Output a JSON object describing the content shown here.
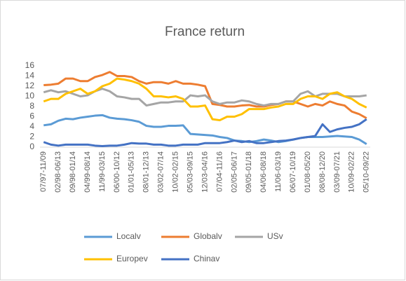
{
  "chart_data": {
    "type": "line",
    "title": "France return",
    "categories": [
      "07/97-11/09",
      null,
      "02/98-06/13",
      null,
      "09/98-01/14",
      null,
      "04/99-08/14",
      null,
      "11/99-03/15",
      null,
      "06/00-10/12",
      null,
      "01/01-05/13",
      null,
      "08/01-12/13",
      null,
      "03/02-07/14",
      null,
      "10/02-02/15",
      null,
      "05/03-09/15",
      null,
      "12/03-04/16",
      null,
      "07/04-11/16",
      null,
      "02/05-06/17",
      null,
      "09/05-01/18",
      null,
      "04/06-08/18",
      null,
      "11/06-03/19",
      null,
      "06/07-10/19",
      null,
      "01/08-05/20",
      null,
      "08/08-12/20",
      null,
      "03/09-07/21",
      null,
      "10/09-02/22",
      null,
      "05/10-09/22"
    ],
    "series": [
      {
        "name": "Localv",
        "color": "#5b9bd5",
        "values": [
          4.3,
          4.5,
          5.2,
          5.6,
          5.5,
          5.8,
          6.0,
          6.2,
          6.3,
          5.8,
          5.6,
          5.5,
          5.3,
          5.0,
          4.2,
          4.0,
          4.0,
          4.2,
          4.2,
          4.3,
          2.6,
          2.5,
          2.4,
          2.3,
          2.0,
          1.8,
          1.3,
          1.2,
          1.0,
          1.2,
          1.5,
          1.3,
          1.0,
          1.2,
          1.5,
          1.8,
          2.0,
          2.0,
          2.0,
          2.1,
          2.2,
          2.1,
          2.0,
          1.5,
          0.6
        ]
      },
      {
        "name": "Globalv",
        "color": "#ed7d31",
        "values": [
          12.2,
          12.3,
          12.5,
          13.5,
          13.5,
          13.0,
          13.0,
          13.8,
          14.2,
          14.8,
          14.0,
          14.0,
          13.8,
          13.0,
          12.5,
          12.8,
          12.8,
          12.5,
          13.0,
          12.5,
          12.5,
          12.3,
          12.0,
          8.5,
          8.3,
          8.0,
          8.0,
          8.2,
          8.3,
          8.0,
          8.0,
          8.3,
          8.5,
          9.0,
          9.0,
          8.5,
          8.0,
          8.5,
          8.2,
          9.0,
          8.5,
          8.2,
          7.0,
          6.5,
          5.7
        ]
      },
      {
        "name": "USv",
        "color": "#a5a5a5",
        "values": [
          10.8,
          11.2,
          10.8,
          11.0,
          10.5,
          10.0,
          10.2,
          11.0,
          11.5,
          11.0,
          10.0,
          9.8,
          9.5,
          9.5,
          8.2,
          8.5,
          8.8,
          8.8,
          9.0,
          9.0,
          10.2,
          10.0,
          10.2,
          9.0,
          8.5,
          8.8,
          8.8,
          9.2,
          9.0,
          8.5,
          8.2,
          8.5,
          8.5,
          9.0,
          9.0,
          10.5,
          11.0,
          10.0,
          10.5,
          10.5,
          10.5,
          10.0,
          10.0,
          10.0,
          10.2
        ]
      },
      {
        "name": "Europev",
        "color": "#ffc000",
        "values": [
          9.0,
          9.5,
          9.5,
          10.5,
          11.0,
          11.5,
          10.5,
          11.0,
          12.0,
          12.5,
          13.5,
          13.3,
          13.0,
          12.5,
          11.5,
          10.0,
          10.0,
          9.8,
          10.0,
          9.5,
          8.0,
          8.0,
          8.2,
          5.5,
          5.3,
          6.0,
          6.0,
          6.5,
          7.5,
          7.5,
          7.5,
          7.8,
          8.0,
          8.5,
          8.5,
          9.5,
          10.0,
          10.0,
          9.5,
          10.5,
          10.8,
          10.0,
          9.5,
          8.5,
          7.8
        ]
      },
      {
        "name": "Chinav",
        "color": "#4472c4",
        "values": [
          1.0,
          0.5,
          0.3,
          0.5,
          0.5,
          0.5,
          0.5,
          0.3,
          0.2,
          0.3,
          0.3,
          0.5,
          0.8,
          0.7,
          0.7,
          0.5,
          0.5,
          0.3,
          0.3,
          0.5,
          0.5,
          0.5,
          0.8,
          0.8,
          0.8,
          1.0,
          1.3,
          1.0,
          1.2,
          0.8,
          0.8,
          1.0,
          1.2,
          1.3,
          1.5,
          1.8,
          2.0,
          2.2,
          4.5,
          3.0,
          3.5,
          3.8,
          4.0,
          4.5,
          5.5
        ]
      }
    ],
    "ylim": [
      0,
      16
    ],
    "yticks": [
      0,
      2,
      4,
      6,
      8,
      10,
      12,
      14,
      16
    ],
    "grid": false
  }
}
